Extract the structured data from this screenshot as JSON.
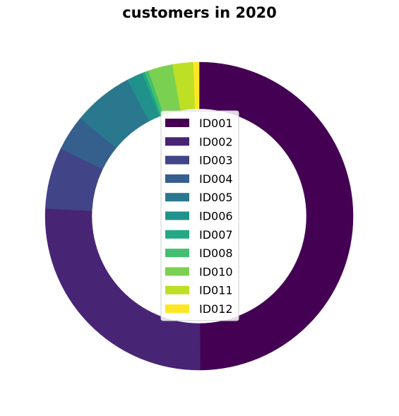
{
  "chart_data": {
    "type": "pie",
    "style": "donut",
    "title": "customers in 2020",
    "legend_position": "center",
    "slices": [
      {
        "label": "ID001",
        "value": 50.5,
        "color": "#440154"
      },
      {
        "label": "ID002",
        "value": 26.2,
        "color": "#482475"
      },
      {
        "label": "ID003",
        "value": 6.5,
        "color": "#414487"
      },
      {
        "label": "ID004",
        "value": 3.8,
        "color": "#355f8d"
      },
      {
        "label": "ID005",
        "value": 6.4,
        "color": "#2a788e"
      },
      {
        "label": "ID006",
        "value": 1.7,
        "color": "#21918c"
      },
      {
        "label": "ID007",
        "value": 0.3,
        "color": "#22a884"
      },
      {
        "label": "ID008",
        "value": 0.4,
        "color": "#44bf70"
      },
      {
        "label": "ID010",
        "value": 2.6,
        "color": "#7ad151"
      },
      {
        "label": "ID011",
        "value": 2.2,
        "color": "#bddf26"
      },
      {
        "label": "ID012",
        "value": 0.6,
        "color": "#fde725"
      }
    ]
  }
}
